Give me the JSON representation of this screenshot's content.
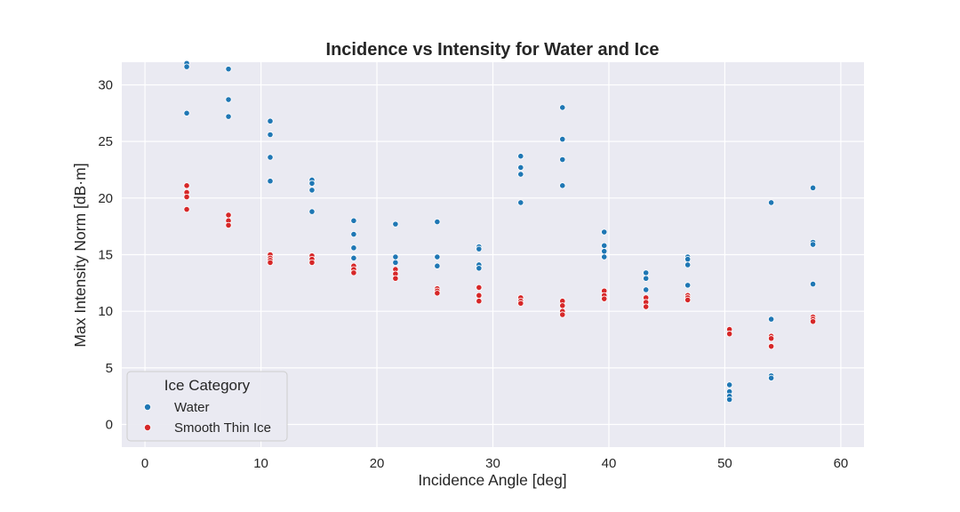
{
  "chart_data": {
    "type": "scatter",
    "title": "Incidence vs Intensity for Water and Ice",
    "xlabel": "Incidence Angle [deg]",
    "ylabel": "Max Intensity Norm [dB·m]",
    "xlim": [
      -2,
      62
    ],
    "ylim": [
      -2,
      32
    ],
    "xticks": [
      0,
      10,
      20,
      30,
      40,
      50,
      60
    ],
    "yticks": [
      0,
      5,
      10,
      15,
      20,
      25,
      30
    ],
    "grid": true,
    "legend": {
      "title": "Ice Category",
      "position": "lower-left"
    },
    "series": [
      {
        "name": "Water",
        "color": "#1f77b4",
        "points": [
          [
            3.6,
            31.9
          ],
          [
            3.6,
            31.6
          ],
          [
            3.6,
            27.5
          ],
          [
            7.2,
            31.4
          ],
          [
            7.2,
            28.7
          ],
          [
            7.2,
            27.2
          ],
          [
            10.8,
            26.8
          ],
          [
            10.8,
            25.6
          ],
          [
            10.8,
            23.6
          ],
          [
            10.8,
            21.5
          ],
          [
            14.4,
            21.6
          ],
          [
            14.4,
            21.3
          ],
          [
            14.4,
            20.7
          ],
          [
            14.4,
            18.8
          ],
          [
            18.0,
            18.0
          ],
          [
            18.0,
            16.8
          ],
          [
            18.0,
            15.6
          ],
          [
            18.0,
            14.7
          ],
          [
            21.6,
            17.7
          ],
          [
            21.6,
            14.8
          ],
          [
            21.6,
            14.3
          ],
          [
            25.2,
            17.9
          ],
          [
            25.2,
            14.8
          ],
          [
            25.2,
            14.0
          ],
          [
            28.8,
            15.7
          ],
          [
            28.8,
            15.5
          ],
          [
            28.8,
            14.1
          ],
          [
            28.8,
            13.8
          ],
          [
            32.4,
            23.7
          ],
          [
            32.4,
            22.7
          ],
          [
            32.4,
            22.1
          ],
          [
            32.4,
            19.6
          ],
          [
            36.0,
            28.0
          ],
          [
            36.0,
            25.2
          ],
          [
            36.0,
            23.4
          ],
          [
            36.0,
            21.1
          ],
          [
            39.6,
            17.0
          ],
          [
            39.6,
            15.8
          ],
          [
            39.6,
            15.3
          ],
          [
            39.6,
            14.8
          ],
          [
            43.2,
            13.4
          ],
          [
            43.2,
            12.9
          ],
          [
            43.2,
            11.9
          ],
          [
            46.8,
            14.8
          ],
          [
            46.8,
            14.6
          ],
          [
            46.8,
            14.1
          ],
          [
            46.8,
            12.3
          ],
          [
            50.4,
            3.5
          ],
          [
            50.4,
            2.9
          ],
          [
            50.4,
            2.5
          ],
          [
            50.4,
            2.2
          ],
          [
            54.0,
            19.6
          ],
          [
            54.0,
            9.3
          ],
          [
            54.0,
            4.3
          ],
          [
            54.0,
            4.1
          ],
          [
            57.6,
            20.9
          ],
          [
            57.6,
            16.1
          ],
          [
            57.6,
            15.9
          ],
          [
            57.6,
            12.4
          ]
        ]
      },
      {
        "name": "Smooth Thin Ice",
        "color": "#d62728",
        "points": [
          [
            3.6,
            21.1
          ],
          [
            3.6,
            20.5
          ],
          [
            3.6,
            20.1
          ],
          [
            3.6,
            19.0
          ],
          [
            7.2,
            18.5
          ],
          [
            7.2,
            18.0
          ],
          [
            7.2,
            17.6
          ],
          [
            10.8,
            15.0
          ],
          [
            10.8,
            14.7
          ],
          [
            10.8,
            14.5
          ],
          [
            10.8,
            14.3
          ],
          [
            14.4,
            14.9
          ],
          [
            14.4,
            14.6
          ],
          [
            14.4,
            14.3
          ],
          [
            18.0,
            14.0
          ],
          [
            18.0,
            13.7
          ],
          [
            18.0,
            13.4
          ],
          [
            21.6,
            13.7
          ],
          [
            21.6,
            13.3
          ],
          [
            21.6,
            12.9
          ],
          [
            25.2,
            12.0
          ],
          [
            25.2,
            11.8
          ],
          [
            25.2,
            11.6
          ],
          [
            28.8,
            12.1
          ],
          [
            28.8,
            11.4
          ],
          [
            28.8,
            10.9
          ],
          [
            32.4,
            11.2
          ],
          [
            32.4,
            10.9
          ],
          [
            32.4,
            10.7
          ],
          [
            36.0,
            10.9
          ],
          [
            36.0,
            10.5
          ],
          [
            36.0,
            10.0
          ],
          [
            36.0,
            9.7
          ],
          [
            39.6,
            11.8
          ],
          [
            39.6,
            11.4
          ],
          [
            39.6,
            11.1
          ],
          [
            43.2,
            11.2
          ],
          [
            43.2,
            10.8
          ],
          [
            43.2,
            10.4
          ],
          [
            46.8,
            11.4
          ],
          [
            46.8,
            11.2
          ],
          [
            46.8,
            11.0
          ],
          [
            50.4,
            8.4
          ],
          [
            50.4,
            8.0
          ],
          [
            54.0,
            7.8
          ],
          [
            54.0,
            7.6
          ],
          [
            54.0,
            6.9
          ],
          [
            57.6,
            9.5
          ],
          [
            57.6,
            9.3
          ],
          [
            57.6,
            9.1
          ]
        ]
      }
    ]
  }
}
